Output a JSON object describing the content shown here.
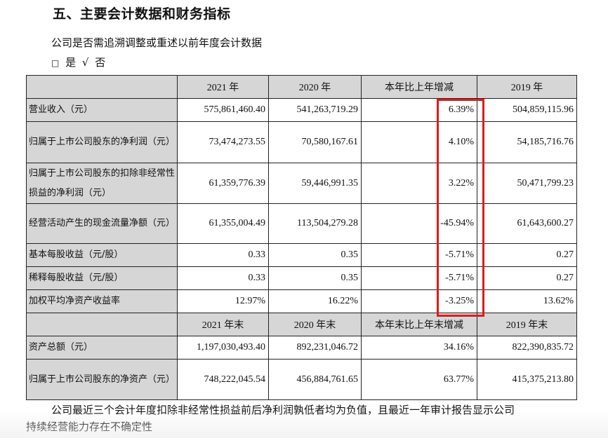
{
  "title": "五、主要会计数据和财务指标",
  "question": "公司是否需追溯调整或重述以前年度会计数据",
  "checkbox": {
    "box": "□",
    "yes": "是",
    "check": "√",
    "no": "否"
  },
  "colors": {
    "highlight_box": "#e01b1b",
    "header_bg": "#d6d6d6"
  },
  "table1": {
    "headers": [
      "",
      "2021 年",
      "2020 年",
      "本年比上年增减",
      "2019 年"
    ],
    "rows": [
      {
        "label": "营业收入（元）",
        "v2021": "575,861,460.40",
        "v2020": "541,263,719.29",
        "change": "6.39%",
        "v2019": "504,859,115.96"
      },
      {
        "label": "归属于上市公司股东的净利润（元）",
        "v2021": "73,474,273.55",
        "v2020": "70,580,167.61",
        "change": "4.10%",
        "v2019": "54,185,716.76"
      },
      {
        "label": "归属于上市公司股东的扣除非经常性损益的净利润（元）",
        "v2021": "61,359,776.39",
        "v2020": "59,446,991.35",
        "change": "3.22%",
        "v2019": "50,471,799.23"
      },
      {
        "label": "经营活动产生的现金流量净额（元）",
        "v2021": "61,355,004.49",
        "v2020": "113,504,279.28",
        "change": "-45.94%",
        "v2019": "61,643,600.27"
      },
      {
        "label": "基本每股收益（元/股）",
        "v2021": "0.33",
        "v2020": "0.35",
        "change": "-5.71%",
        "v2019": "0.27"
      },
      {
        "label": "稀释每股收益（元/股）",
        "v2021": "0.33",
        "v2020": "0.35",
        "change": "-5.71%",
        "v2019": "0.27"
      },
      {
        "label": "加权平均净资产收益率",
        "v2021": "12.97%",
        "v2020": "16.22%",
        "change": "-3.25%",
        "v2019": "13.62%"
      }
    ]
  },
  "table2": {
    "headers": [
      "",
      "2021 年末",
      "2020 年末",
      "本年末比上年末增减",
      "2019 年末"
    ],
    "rows": [
      {
        "label": "资产总额（元）",
        "v2021": "1,197,030,493.40",
        "v2020": "892,231,046.72",
        "change": "34.16%",
        "v2019": "822,390,835.72"
      },
      {
        "label": "归属于上市公司股东的净资产（元）",
        "v2021": "748,222,045.54",
        "v2020": "456,884,761.65",
        "change": "63.77%",
        "v2019": "415,375,213.80"
      }
    ]
  },
  "footer": {
    "line1": "公司最近三个会计年度扣除非经常性损益前后净利润孰低者均为负值，且最近一年审计报告显示公司",
    "line2": "持续经营能力存在不确定性"
  }
}
